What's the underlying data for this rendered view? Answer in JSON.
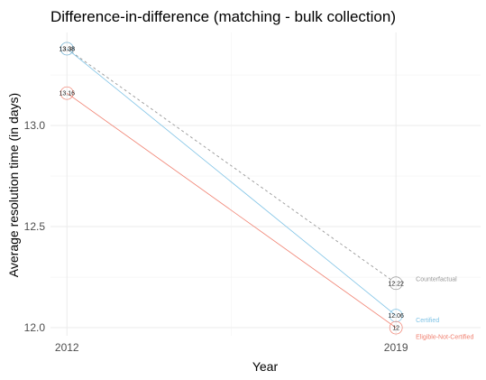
{
  "chart_data": {
    "type": "line",
    "title": "Difference-in-difference (matching - bulk collection)",
    "xlabel": "Year",
    "ylabel": "Average resolution time (in days)",
    "x": [
      2012,
      2019
    ],
    "x_ticks": [
      "2012",
      "2019"
    ],
    "y_ticks": [
      "12.0",
      "12.5",
      "13.0"
    ],
    "xlim": [
      2011.65,
      2020.8
    ],
    "ylim": [
      11.96,
      13.46
    ],
    "grid": true,
    "series": [
      {
        "name": "Counterfactual",
        "values": [
          13.38,
          12.22
        ],
        "labels": [
          "13.38",
          "12.22"
        ],
        "color": "#999999",
        "dashed": true
      },
      {
        "name": "Certified",
        "values": [
          13.38,
          12.06
        ],
        "labels": [
          "13.38",
          "12.06"
        ],
        "color": "#7fc3e6",
        "dashed": false
      },
      {
        "name": "Eligible-Not-Certified",
        "values": [
          13.16,
          12.0
        ],
        "labels": [
          "13.16",
          "12"
        ],
        "color": "#f08070",
        "dashed": false
      }
    ]
  }
}
